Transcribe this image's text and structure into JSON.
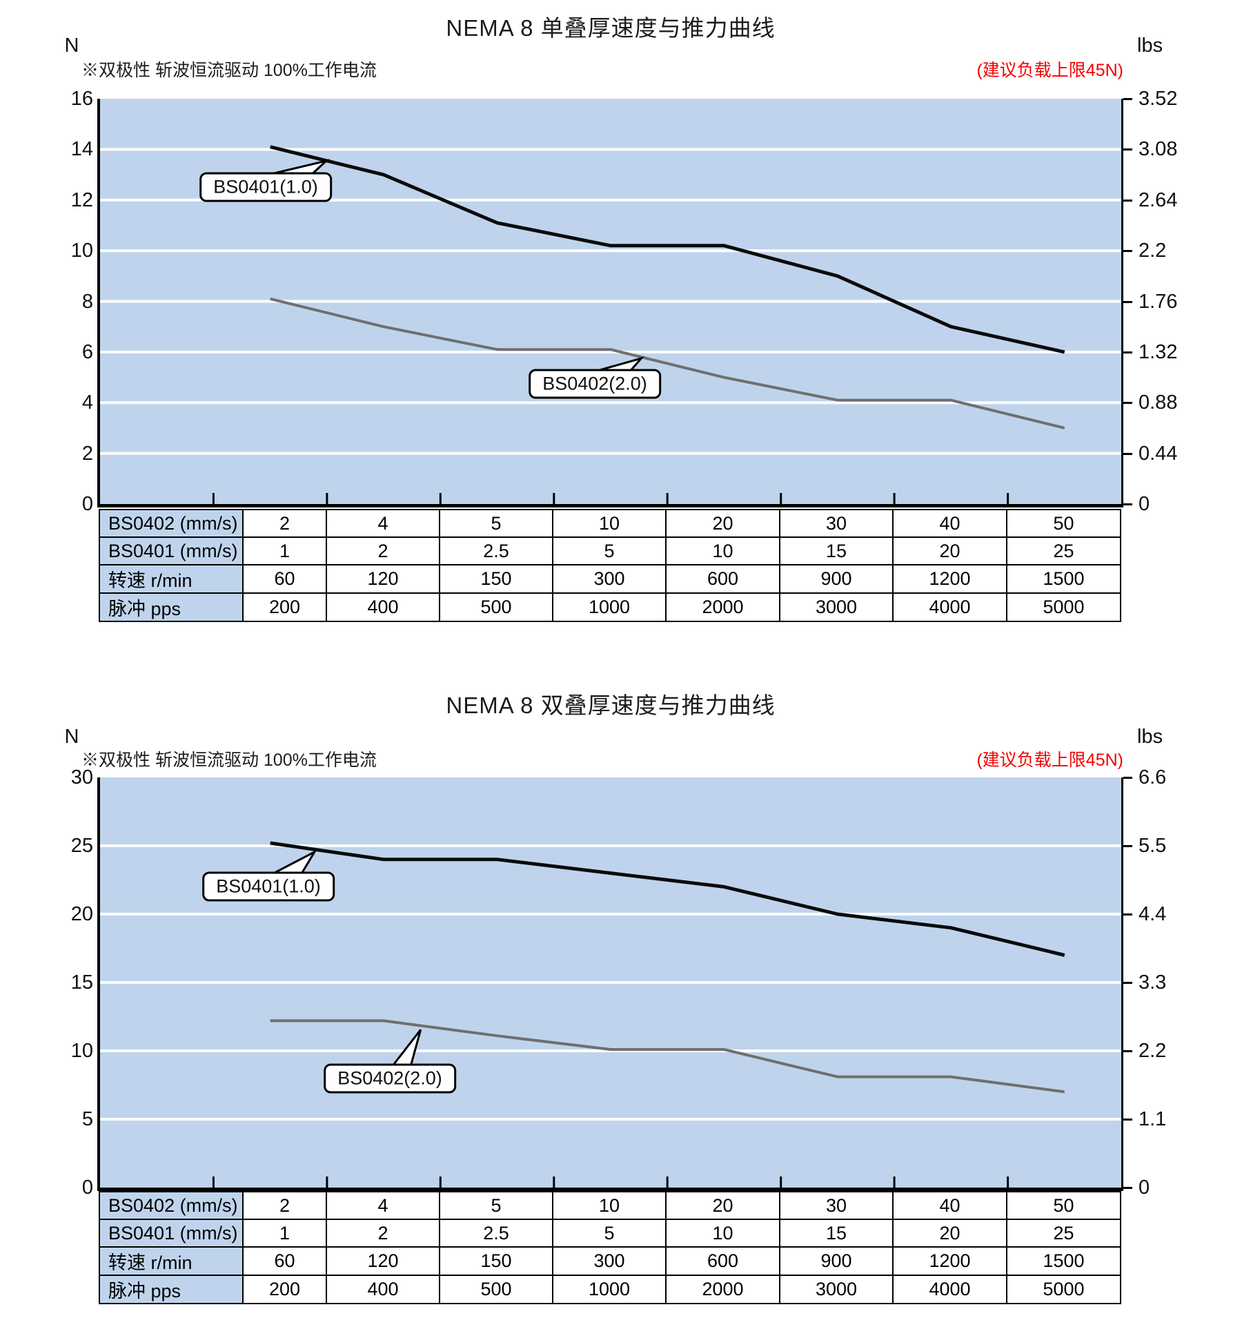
{
  "charts": [
    {
      "title": "NEMA 8 单叠厚速度与推力曲线",
      "note": "※双极性 斩波恒流驱动 100%工作电流",
      "warning": "(建议负载上限45N)",
      "left_unit": "N",
      "right_unit": "lbs",
      "chart_data": {
        "type": "line",
        "title": "NEMA 8 单叠厚速度与推力曲线",
        "x_axis_label": "脉冲 pps",
        "x_categories_pps": [
          200,
          400,
          500,
          1000,
          2000,
          3000,
          4000,
          5000
        ],
        "ylabel_left": "N",
        "ylabel_right": "lbs",
        "ylim_left": [
          0,
          16
        ],
        "ylim_right": [
          0,
          3.52
        ],
        "left_ticks": [
          "16",
          "14",
          "12",
          "10",
          "8",
          "6",
          "4",
          "2",
          "0"
        ],
        "right_ticks": [
          "3.52",
          "3.08",
          "2.64",
          "2.2",
          "1.76",
          "1.32",
          "0.88",
          "0.44",
          "0"
        ],
        "grid": "horizontal white lines on light-blue panel",
        "bg_color": "#bfd4ec",
        "series": [
          {
            "name": "BS0401(1.0)",
            "color": "#0b0b0b",
            "stroke_width": 5,
            "values_N": [
              14.1,
              13.0,
              11.1,
              10.2,
              10.2,
              9.0,
              7.0,
              6.0
            ]
          },
          {
            "name": "BS0402(2.0)",
            "color": "#6f6f6f",
            "stroke_width": 4,
            "values_N": [
              8.1,
              7.0,
              6.1,
              6.1,
              5.0,
              4.1,
              4.1,
              3.0
            ]
          }
        ],
        "callouts": [
          {
            "text": "BS0401(1.0)",
            "box_x": 0.162,
            "box_N": 12.5,
            "tip_x": 0.2216,
            "tip_N": 13.55
          },
          {
            "text": "BS0402(2.0)",
            "box_x": 0.4845,
            "box_N": 4.75,
            "tip_x": 0.53,
            "tip_N": 5.75
          }
        ]
      },
      "table": {
        "rows": [
          {
            "header": "BS0402 (mm/s)",
            "values": [
              "2",
              "4",
              "5",
              "10",
              "20",
              "30",
              "40",
              "50"
            ]
          },
          {
            "header": "BS0401 (mm/s)",
            "values": [
              "1",
              "2",
              "2.5",
              "5",
              "10",
              "15",
              "20",
              "25"
            ]
          },
          {
            "header": "转速 r/min",
            "values": [
              "60",
              "120",
              "150",
              "300",
              "600",
              "900",
              "1200",
              "1500"
            ]
          },
          {
            "header": "脉冲 pps",
            "values": [
              "200",
              "400",
              "500",
              "1000",
              "2000",
              "3000",
              "4000",
              "5000"
            ]
          }
        ]
      }
    },
    {
      "title": "NEMA 8 双叠厚速度与推力曲线",
      "note": "※双极性 斩波恒流驱动 100%工作电流",
      "warning": "(建议负载上限45N)",
      "left_unit": "N",
      "right_unit": "lbs",
      "chart_data": {
        "type": "line",
        "title": "NEMA 8 双叠厚速度与推力曲线",
        "x_axis_label": "脉冲 pps",
        "x_categories_pps": [
          200,
          400,
          500,
          1000,
          2000,
          3000,
          4000,
          5000
        ],
        "ylabel_left": "N",
        "ylabel_right": "lbs",
        "ylim_left": [
          0,
          30
        ],
        "ylim_right": [
          0,
          6.6
        ],
        "left_ticks": [
          "30",
          "25",
          "20",
          "15",
          "10",
          "5",
          "0"
        ],
        "right_ticks": [
          "6.6",
          "5.5",
          "4.4",
          "3.3",
          "2.2",
          "1.1",
          "0"
        ],
        "grid": "horizontal white lines on light-blue panel",
        "bg_color": "#bfd4ec",
        "series": [
          {
            "name": "BS0401(1.0)",
            "color": "#0b0b0b",
            "stroke_width": 5,
            "values_N": [
              25.2,
              24.0,
              24.0,
              23.0,
              22.0,
              20.0,
              19.0,
              17.0
            ]
          },
          {
            "name": "BS0402(2.0)",
            "color": "#6f6f6f",
            "stroke_width": 4,
            "values_N": [
              12.2,
              12.2,
              11.1,
              10.1,
              10.1,
              8.1,
              8.1,
              7.0
            ]
          }
        ],
        "callouts": [
          {
            "text": "BS0401(1.0)",
            "box_x": 0.165,
            "box_N": 22.0,
            "tip_x": 0.21,
            "tip_N": 24.55
          },
          {
            "text": "BS0402(2.0)",
            "box_x": 0.284,
            "box_N": 8.0,
            "tip_x": 0.314,
            "tip_N": 11.55
          }
        ]
      },
      "table": {
        "rows": [
          {
            "header": "BS0402 (mm/s)",
            "values": [
              "2",
              "4",
              "5",
              "10",
              "20",
              "30",
              "40",
              "50"
            ]
          },
          {
            "header": "BS0401 (mm/s)",
            "values": [
              "1",
              "2",
              "2.5",
              "5",
              "10",
              "15",
              "20",
              "25"
            ]
          },
          {
            "header": "转速 r/min",
            "values": [
              "60",
              "120",
              "150",
              "300",
              "600",
              "900",
              "1200",
              "1500"
            ]
          },
          {
            "header": "脉冲 pps",
            "values": [
              "200",
              "400",
              "500",
              "1000",
              "2000",
              "3000",
              "4000",
              "5000"
            ]
          }
        ]
      }
    }
  ]
}
